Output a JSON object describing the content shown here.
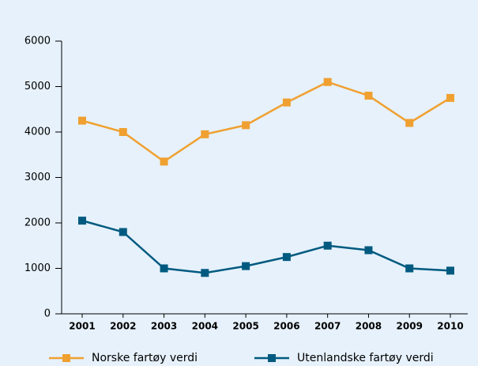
{
  "chart_data": {
    "type": "line",
    "categories": [
      "2001",
      "2002",
      "2003",
      "2004",
      "2005",
      "2006",
      "2007",
      "2008",
      "2009",
      "2010"
    ],
    "series": [
      {
        "name": "Norske fartøy verdi",
        "color": "#f0a030",
        "values": [
          4250,
          4000,
          3350,
          3950,
          4150,
          4650,
          5100,
          4800,
          4200,
          4750
        ]
      },
      {
        "name": "Utenlandske fartøy verdi",
        "color": "#005a80",
        "values": [
          2050,
          1800,
          1000,
          900,
          1050,
          1250,
          1500,
          1400,
          1000,
          950
        ]
      }
    ],
    "ylim": [
      0,
      6000
    ],
    "yticks": [
      0,
      1000,
      2000,
      3000,
      4000,
      5000,
      6000
    ]
  }
}
